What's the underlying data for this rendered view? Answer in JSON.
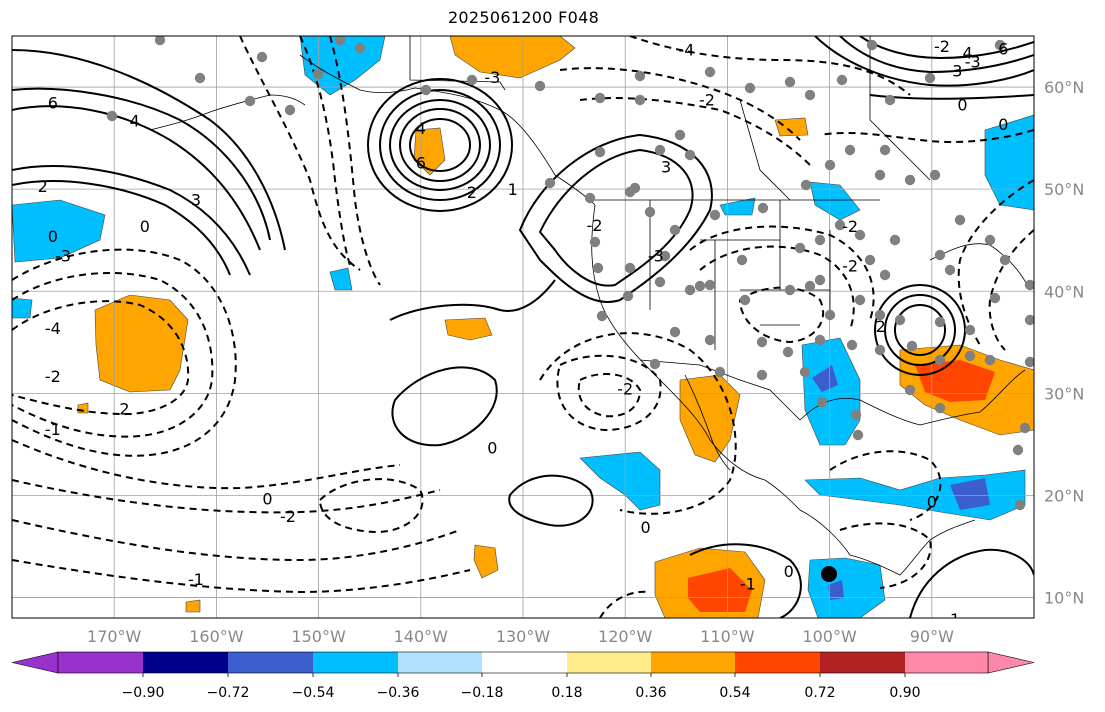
{
  "title": "2025061200 F048",
  "map": {
    "lon_range": [
      -180,
      -80
    ],
    "lat_range": [
      8,
      65
    ],
    "lon_ticks": [
      {
        "value": -170,
        "label": "170°W"
      },
      {
        "value": -160,
        "label": "160°W"
      },
      {
        "value": -150,
        "label": "150°W"
      },
      {
        "value": -140,
        "label": "140°W"
      },
      {
        "value": -130,
        "label": "130°W"
      },
      {
        "value": -120,
        "label": "120°W"
      },
      {
        "value": -110,
        "label": "110°W"
      },
      {
        "value": -100,
        "label": "100°W"
      },
      {
        "value": -90,
        "label": "90°W"
      }
    ],
    "lat_ticks": [
      {
        "value": 10,
        "label": "10°N"
      },
      {
        "value": 20,
        "label": "20°N"
      },
      {
        "value": 30,
        "label": "30°N"
      },
      {
        "value": 40,
        "label": "40°N"
      },
      {
        "value": 50,
        "label": "50°N"
      },
      {
        "value": 60,
        "label": "60°N"
      }
    ],
    "grid": true,
    "colors": {
      "grid": "#a0a0a0",
      "contour": "#000000",
      "station": "#808080",
      "coast": "#000000"
    }
  },
  "colorbar": {
    "ticks": [
      "−0.90",
      "−0.72",
      "−0.54",
      "−0.36",
      "−0.18",
      "0.18",
      "0.36",
      "0.54",
      "0.72",
      "0.90"
    ],
    "colors": [
      "#9932cc",
      "#00008b",
      "#3a5fcd",
      "#00bfff",
      "#b0e2ff",
      "#ffffff",
      "#ffec8b",
      "#ffa500",
      "#ff4500",
      "#b22222",
      "#ff88aa"
    ]
  },
  "contour_labels": [
    {
      "text": "6",
      "lon": -176,
      "lat": 58.5
    },
    {
      "text": "4",
      "lon": -168,
      "lat": 56.7
    },
    {
      "text": "3",
      "lon": -162,
      "lat": 49
    },
    {
      "text": "2",
      "lon": -177,
      "lat": 50.3
    },
    {
      "text": "0",
      "lon": -176,
      "lat": 45.4
    },
    {
      "text": "0",
      "lon": -167,
      "lat": 46.4
    },
    {
      "text": "-3",
      "lon": -175,
      "lat": 43.5
    },
    {
      "text": "-4",
      "lon": -176,
      "lat": 36.4
    },
    {
      "text": "-2",
      "lon": -176,
      "lat": 31.7
    },
    {
      "text": "2",
      "lon": -169,
      "lat": 28.5
    },
    {
      "text": "-1",
      "lon": -176,
      "lat": 26.5
    },
    {
      "text": "4",
      "lon": -140,
      "lat": 56
    },
    {
      "text": "6",
      "lon": -140,
      "lat": 52.6
    },
    {
      "text": "2",
      "lon": -135,
      "lat": 49.7
    },
    {
      "text": "1",
      "lon": -131,
      "lat": 50
    },
    {
      "text": "-3",
      "lon": -133,
      "lat": 61
    },
    {
      "text": "-4",
      "lon": -114,
      "lat": 63.7
    },
    {
      "text": "-2",
      "lon": -112,
      "lat": 58.8
    },
    {
      "text": "3",
      "lon": -116,
      "lat": 52.2
    },
    {
      "text": "-3",
      "lon": -117,
      "lat": 43.5
    },
    {
      "text": "-2",
      "lon": -123,
      "lat": 46.5
    },
    {
      "text": "-2",
      "lon": -98,
      "lat": 46.4
    },
    {
      "text": "-2",
      "lon": -98,
      "lat": 42.5
    },
    {
      "text": "-2",
      "lon": -120,
      "lat": 30.5
    },
    {
      "text": "0",
      "lon": -133,
      "lat": 24.7
    },
    {
      "text": "0",
      "lon": -155,
      "lat": 19.7
    },
    {
      "text": "-2",
      "lon": -153,
      "lat": 18
    },
    {
      "text": "-1",
      "lon": -162,
      "lat": 11.8
    },
    {
      "text": "0",
      "lon": -118,
      "lat": 16.9
    },
    {
      "text": "0",
      "lon": -104,
      "lat": 12.6
    },
    {
      "text": "-1",
      "lon": -108,
      "lat": 11.4
    },
    {
      "text": "0",
      "lon": -90,
      "lat": 19.4
    },
    {
      "text": "-1",
      "lon": -88,
      "lat": 7.9
    },
    {
      "text": "2",
      "lon": -95,
      "lat": 36.6
    },
    {
      "text": "-2",
      "lon": -89,
      "lat": 64
    },
    {
      "text": "-3",
      "lon": -86,
      "lat": 62.5
    },
    {
      "text": "0",
      "lon": -87,
      "lat": 58.3
    },
    {
      "text": "0",
      "lon": -83,
      "lat": 56.4
    },
    {
      "text": "6",
      "lon": -83,
      "lat": 63.8
    },
    {
      "text": "4",
      "lon": -86.5,
      "lat": 63.4
    },
    {
      "text": "3",
      "lon": -87.5,
      "lat": 61.6
    }
  ]
}
